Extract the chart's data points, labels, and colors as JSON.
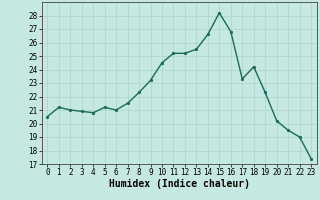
{
  "x": [
    0,
    1,
    2,
    3,
    4,
    5,
    6,
    7,
    8,
    9,
    10,
    11,
    12,
    13,
    14,
    15,
    16,
    17,
    18,
    19,
    20,
    21,
    22,
    23
  ],
  "y": [
    20.5,
    21.2,
    21.0,
    20.9,
    20.8,
    21.2,
    21.0,
    21.5,
    22.3,
    23.2,
    24.5,
    25.2,
    25.2,
    25.5,
    26.6,
    28.2,
    26.8,
    23.3,
    24.2,
    22.3,
    20.2,
    19.5,
    19.0,
    17.4
  ],
  "xlim": [
    -0.5,
    23.5
  ],
  "ylim": [
    17,
    29
  ],
  "yticks": [
    17,
    18,
    19,
    20,
    21,
    22,
    23,
    24,
    25,
    26,
    27,
    28
  ],
  "xticks": [
    0,
    1,
    2,
    3,
    4,
    5,
    6,
    7,
    8,
    9,
    10,
    11,
    12,
    13,
    14,
    15,
    16,
    17,
    18,
    19,
    20,
    21,
    22,
    23
  ],
  "xlabel": "Humidex (Indice chaleur)",
  "line_color": "#1a6b5a",
  "marker": "o",
  "marker_size": 1.8,
  "line_width": 1.0,
  "bg_color": "#c5e8e0",
  "grid_color": "#aad4cb",
  "xlabel_fontsize": 7,
  "tick_fontsize": 5.5
}
